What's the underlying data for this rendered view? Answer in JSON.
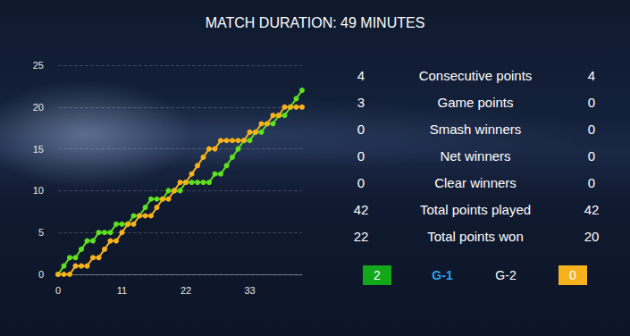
{
  "chart_data": {
    "type": "line",
    "title": "MATCH DURATION: 49 MINUTES",
    "x": [
      0,
      1,
      2,
      3,
      4,
      5,
      6,
      7,
      8,
      9,
      10,
      11,
      12,
      13,
      14,
      15,
      16,
      17,
      18,
      19,
      20,
      21,
      22,
      23,
      24,
      25,
      26,
      27,
      28,
      29,
      30,
      31,
      32,
      33,
      34,
      35,
      36,
      37,
      38,
      39,
      40,
      41,
      42
    ],
    "series": [
      {
        "color": "#5fe01f",
        "marker": "circle",
        "line_style": "solid",
        "values": [
          0,
          1,
          2,
          2,
          3,
          4,
          4,
          5,
          5,
          5,
          6,
          6,
          6,
          7,
          7,
          8,
          9,
          9,
          9,
          10,
          10,
          10,
          11,
          11,
          11,
          11,
          11,
          12,
          12,
          13,
          14,
          15,
          16,
          16,
          17,
          17,
          18,
          18,
          19,
          19,
          20,
          21,
          22
        ]
      },
      {
        "color": "#f5b21c",
        "marker": "circle",
        "line_style": "solid",
        "values": [
          0,
          0,
          0,
          1,
          1,
          1,
          2,
          2,
          3,
          4,
          4,
          5,
          6,
          6,
          7,
          7,
          7,
          8,
          9,
          9,
          10,
          11,
          11,
          12,
          13,
          14,
          15,
          15,
          16,
          16,
          16,
          16,
          16,
          17,
          17,
          18,
          18,
          19,
          19,
          20,
          20,
          20,
          20
        ]
      }
    ],
    "xlim": [
      0,
      42
    ],
    "xticks": [
      0,
      11,
      22,
      33
    ],
    "ylim": [
      0,
      25
    ],
    "yticks": [
      0,
      5,
      10,
      15,
      20,
      25
    ],
    "grid": true
  },
  "stats": {
    "rows": [
      {
        "left": 4,
        "label": "Consecutive points",
        "right": 4
      },
      {
        "left": 3,
        "label": "Game points",
        "right": 0
      },
      {
        "left": 0,
        "label": "Smash winners",
        "right": 0
      },
      {
        "left": 0,
        "label": "Net winners",
        "right": 0
      },
      {
        "left": 0,
        "label": "Clear winners",
        "right": 0
      },
      {
        "left": 42,
        "label": "Total points played",
        "right": 42
      },
      {
        "left": 22,
        "label": "Total points won",
        "right": 20
      }
    ],
    "games": {
      "left": 2,
      "labels": [
        "G-1",
        "G-2"
      ],
      "right": 0
    }
  }
}
